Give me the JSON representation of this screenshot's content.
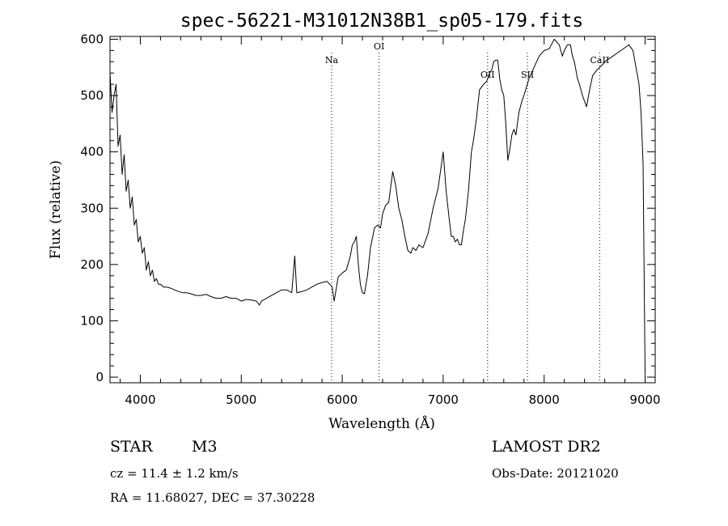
{
  "chart_data": {
    "type": "line",
    "title": "spec-56221-M31012N38B1_sp05-179.fits",
    "xlabel": "Wavelength (Å)",
    "ylabel": "Flux (relative)",
    "xlim": [
      3700,
      9100
    ],
    "ylim": [
      -10,
      605
    ],
    "xticks": [
      4000,
      5000,
      6000,
      7000,
      8000,
      9000
    ],
    "yticks": [
      0,
      100,
      200,
      300,
      400,
      500,
      600
    ],
    "grid": false,
    "line_color": "#000000",
    "series": [
      {
        "x": [
          3700,
          3720,
          3740,
          3760,
          3780,
          3800,
          3820,
          3840,
          3860,
          3880,
          3900,
          3920,
          3940,
          3960,
          3980,
          4000,
          4020,
          4040,
          4060,
          4080,
          4100,
          4120,
          4140,
          4160,
          4180,
          4200,
          4230,
          4260,
          4300,
          4340,
          4380,
          4420,
          4460,
          4500,
          4550,
          4600,
          4650,
          4700,
          4750,
          4800,
          4850,
          4900,
          4950,
          5000,
          5050,
          5100,
          5150,
          5180,
          5200,
          5250,
          5300,
          5350,
          5400,
          5450,
          5500,
          5530,
          5550,
          5600,
          5650,
          5700,
          5750,
          5800,
          5850,
          5900,
          5920,
          5960,
          6000,
          6040,
          6080,
          6100,
          6120,
          6140,
          6160,
          6180,
          6200,
          6220,
          6250,
          6280,
          6320,
          6350,
          6380,
          6400,
          6430,
          6460,
          6500,
          6530,
          6560,
          6590,
          6620,
          6650,
          6680,
          6700,
          6730,
          6760,
          6800,
          6850,
          6900,
          6950,
          7000,
          7030,
          7060,
          7080,
          7100,
          7120,
          7140,
          7160,
          7180,
          7200,
          7220,
          7250,
          7280,
          7300,
          7330,
          7360,
          7400,
          7430,
          7460,
          7480,
          7500,
          7520,
          7540,
          7560,
          7580,
          7600,
          7620,
          7640,
          7660,
          7680,
          7700,
          7720,
          7750,
          7780,
          7800,
          7850,
          7900,
          7950,
          8000,
          8050,
          8100,
          8150,
          8180,
          8200,
          8230,
          8260,
          8280,
          8300,
          8330,
          8350,
          8380,
          8400,
          8420,
          8450,
          8480,
          8500,
          8520,
          8550,
          8580,
          8600,
          8640,
          8680,
          8720,
          8760,
          8800,
          8840,
          8880,
          8900,
          8920,
          8940,
          8960,
          8980,
          9000
        ],
        "y": [
          540,
          470,
          500,
          520,
          410,
          430,
          360,
          395,
          330,
          350,
          300,
          320,
          270,
          280,
          240,
          250,
          220,
          230,
          190,
          205,
          180,
          190,
          170,
          175,
          165,
          165,
          160,
          160,
          158,
          155,
          152,
          150,
          150,
          148,
          145,
          145,
          147,
          143,
          140,
          140,
          143,
          140,
          140,
          135,
          138,
          137,
          135,
          128,
          135,
          140,
          145,
          150,
          155,
          155,
          150,
          215,
          150,
          152,
          155,
          160,
          165,
          168,
          170,
          160,
          135,
          178,
          185,
          190,
          215,
          235,
          240,
          250,
          200,
          165,
          150,
          148,
          180,
          230,
          265,
          270,
          265,
          290,
          305,
          310,
          365,
          340,
          300,
          280,
          250,
          225,
          220,
          230,
          225,
          235,
          230,
          255,
          300,
          335,
          400,
          330,
          280,
          250,
          250,
          240,
          245,
          235,
          235,
          260,
          280,
          330,
          400,
          420,
          460,
          510,
          520,
          525,
          540,
          545,
          560,
          563,
          563,
          530,
          510,
          500,
          450,
          385,
          405,
          430,
          440,
          430,
          470,
          490,
          500,
          530,
          550,
          570,
          580,
          583,
          600,
          590,
          570,
          580,
          590,
          590,
          570,
          560,
          530,
          520,
          500,
          490,
          480,
          510,
          535,
          540,
          545,
          550,
          555,
          560,
          565,
          570,
          575,
          580,
          585,
          590,
          580,
          560,
          540,
          520,
          470,
          380,
          5
        ]
      }
    ],
    "annotations": [
      {
        "label": "Na",
        "x": 5895
      },
      {
        "label": "OI",
        "x": 6365
      },
      {
        "label": "OII",
        "x": 7440
      },
      {
        "label": "SII",
        "x": 7835
      },
      {
        "label": "CaII",
        "x": 8550
      }
    ]
  },
  "info": {
    "object_class": "STAR",
    "subclass": "M3",
    "cz": "cz = 11.4 ± 1.2 km/s",
    "radec": "RA =  11.68027, DEC =  37.30228",
    "survey": "LAMOST DR2",
    "obs_date": "Obs-Date: 20121020"
  }
}
